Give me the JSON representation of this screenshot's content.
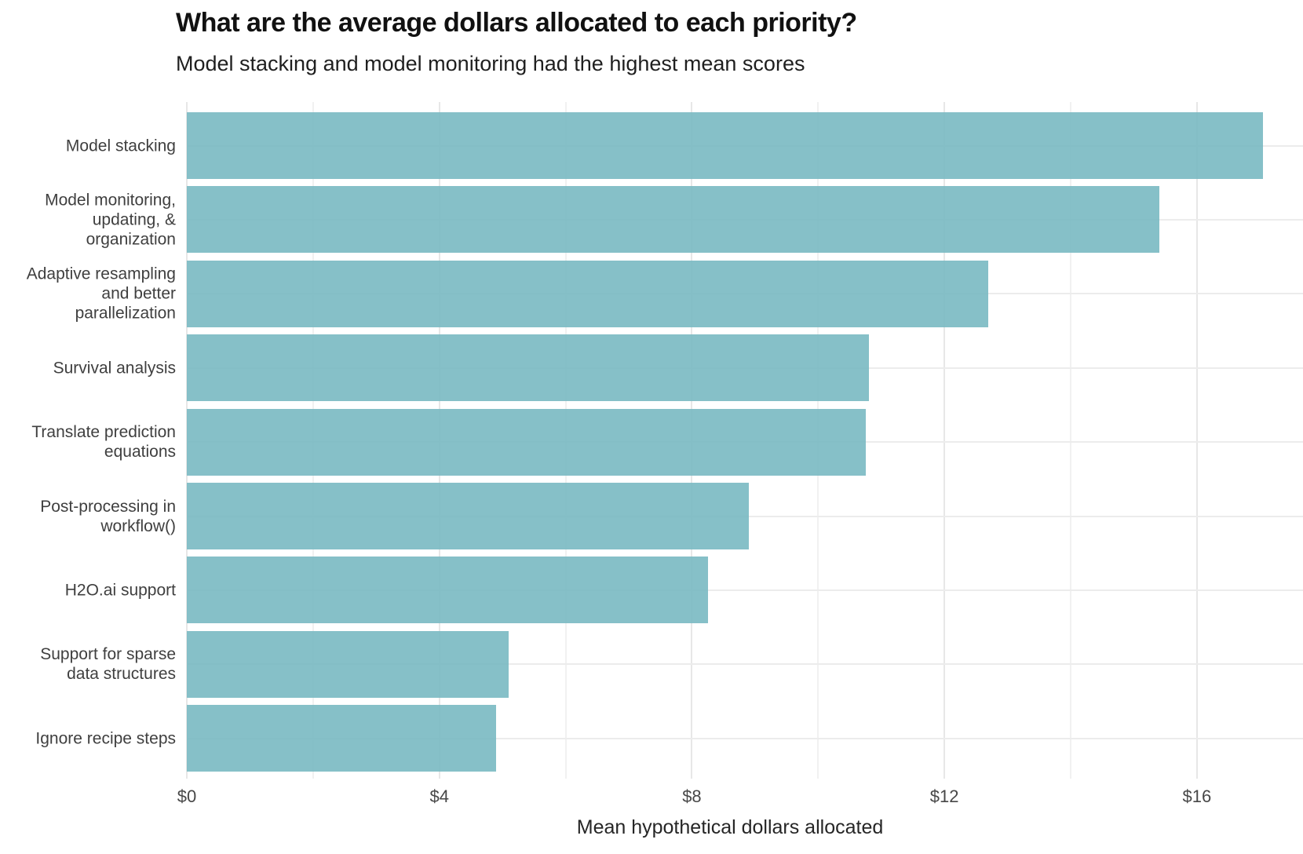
{
  "header": {
    "title": "What are the average dollars allocated to each priority?",
    "subtitle": "Model stacking and model monitoring had the highest mean scores"
  },
  "chart_data": {
    "type": "bar",
    "orientation": "horizontal",
    "title": "What are the average dollars allocated to each priority?",
    "subtitle": "Model stacking and model monitoring had the highest mean scores",
    "xlabel": "Mean hypothetical dollars allocated",
    "ylabel": "",
    "categories": [
      "Model stacking",
      "Model monitoring,\nupdating, &\norganization",
      "Adaptive resampling\nand better\nparallelization",
      "Survival analysis",
      "Translate prediction\nequations",
      "Post-processing in\nworkflow()",
      "H2O.ai support",
      "Support for sparse\ndata structures",
      "Ignore recipe steps"
    ],
    "values": [
      17.05,
      15.4,
      12.7,
      10.8,
      10.75,
      8.9,
      8.25,
      5.1,
      4.9
    ],
    "xlim": [
      0,
      17.68
    ],
    "x_major_ticks": [
      {
        "label": "$0",
        "value": 0
      },
      {
        "label": "$4",
        "value": 4
      },
      {
        "label": "$8",
        "value": 8
      },
      {
        "label": "$12",
        "value": 12
      },
      {
        "label": "$16",
        "value": 16
      }
    ],
    "x_minor_ticks": [
      2,
      6,
      10,
      14
    ],
    "grid": "major-and-minor, horizontal lines at each category",
    "legend_position": "none",
    "bar_color": "#8AC2CA",
    "major_grid_color": "#e7e7e7",
    "minor_grid_color": "#f1f1f1",
    "background_color": "#ffffff"
  }
}
